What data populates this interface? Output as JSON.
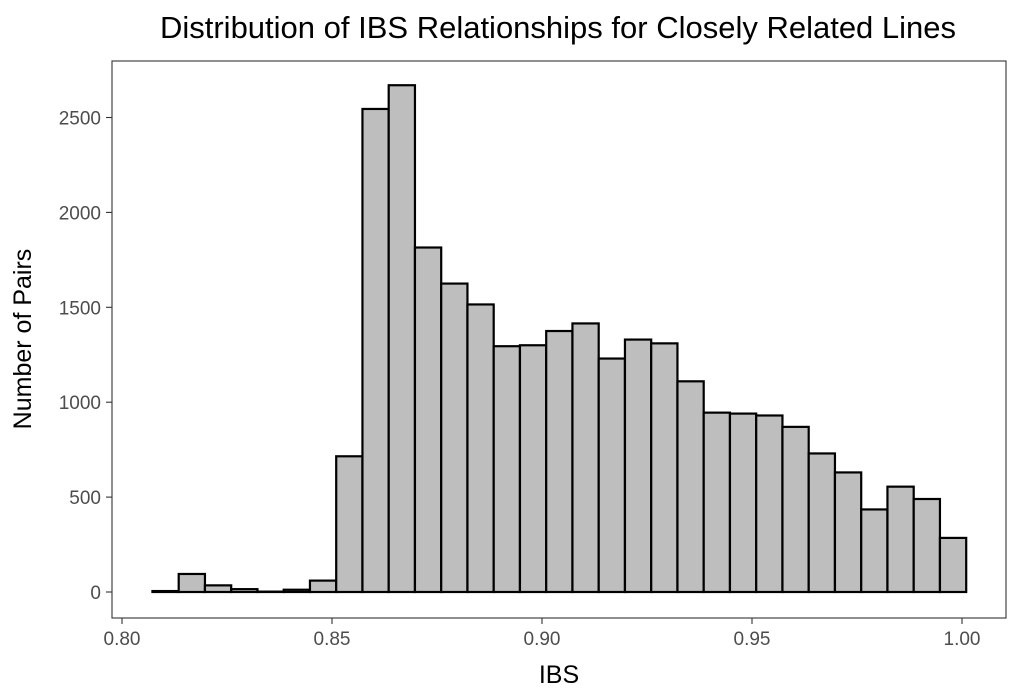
{
  "chart_data": {
    "type": "bar",
    "title": "Distribution of IBS Relationships for Closely Related Lines",
    "xlabel": "IBS",
    "ylabel": "Number of Pairs",
    "xlim": [
      0.8,
      1.0
    ],
    "ylim": [
      0,
      2500
    ],
    "x_ticks": [
      "0.80",
      "0.85",
      "0.90",
      "0.95",
      "1.00"
    ],
    "y_ticks": [
      "0",
      "500",
      "1000",
      "1500",
      "2000",
      "2500"
    ],
    "grid": false,
    "bin_width": 0.00625,
    "bins": [
      {
        "x_start": 0.80725,
        "x_end": 0.8135,
        "count": 5
      },
      {
        "x_start": 0.8135,
        "x_end": 0.81975,
        "count": 95
      },
      {
        "x_start": 0.81975,
        "x_end": 0.826,
        "count": 35
      },
      {
        "x_start": 0.826,
        "x_end": 0.83225,
        "count": 15
      },
      {
        "x_start": 0.83225,
        "x_end": 0.8385,
        "count": 2
      },
      {
        "x_start": 0.8385,
        "x_end": 0.84475,
        "count": 12
      },
      {
        "x_start": 0.84475,
        "x_end": 0.851,
        "count": 60
      },
      {
        "x_start": 0.851,
        "x_end": 0.85725,
        "count": 715
      },
      {
        "x_start": 0.85725,
        "x_end": 0.8635,
        "count": 2545
      },
      {
        "x_start": 0.8635,
        "x_end": 0.86975,
        "count": 2670
      },
      {
        "x_start": 0.86975,
        "x_end": 0.876,
        "count": 1815
      },
      {
        "x_start": 0.876,
        "x_end": 0.88225,
        "count": 1625
      },
      {
        "x_start": 0.88225,
        "x_end": 0.8885,
        "count": 1515
      },
      {
        "x_start": 0.8885,
        "x_end": 0.89475,
        "count": 1295
      },
      {
        "x_start": 0.89475,
        "x_end": 0.901,
        "count": 1300
      },
      {
        "x_start": 0.901,
        "x_end": 0.90725,
        "count": 1375
      },
      {
        "x_start": 0.90725,
        "x_end": 0.9135,
        "count": 1415
      },
      {
        "x_start": 0.9135,
        "x_end": 0.91975,
        "count": 1230
      },
      {
        "x_start": 0.91975,
        "x_end": 0.926,
        "count": 1330
      },
      {
        "x_start": 0.926,
        "x_end": 0.93225,
        "count": 1310
      },
      {
        "x_start": 0.93225,
        "x_end": 0.9385,
        "count": 1110
      },
      {
        "x_start": 0.9385,
        "x_end": 0.94475,
        "count": 945
      },
      {
        "x_start": 0.94475,
        "x_end": 0.951,
        "count": 940
      },
      {
        "x_start": 0.951,
        "x_end": 0.95725,
        "count": 930
      },
      {
        "x_start": 0.95725,
        "x_end": 0.9635,
        "count": 870
      },
      {
        "x_start": 0.9635,
        "x_end": 0.96975,
        "count": 730
      },
      {
        "x_start": 0.96975,
        "x_end": 0.976,
        "count": 630
      },
      {
        "x_start": 0.976,
        "x_end": 0.98225,
        "count": 435
      },
      {
        "x_start": 0.98225,
        "x_end": 0.9885,
        "count": 555
      },
      {
        "x_start": 0.9885,
        "x_end": 0.99475,
        "count": 490
      },
      {
        "x_start": 0.99475,
        "x_end": 1.001,
        "count": 285
      }
    ],
    "colors": {
      "bar_fill": "#bebebe",
      "bar_outline": "#000000",
      "background": "#ffffff",
      "panel_border": "#333333",
      "tick_label": "#4d4d4d"
    }
  }
}
